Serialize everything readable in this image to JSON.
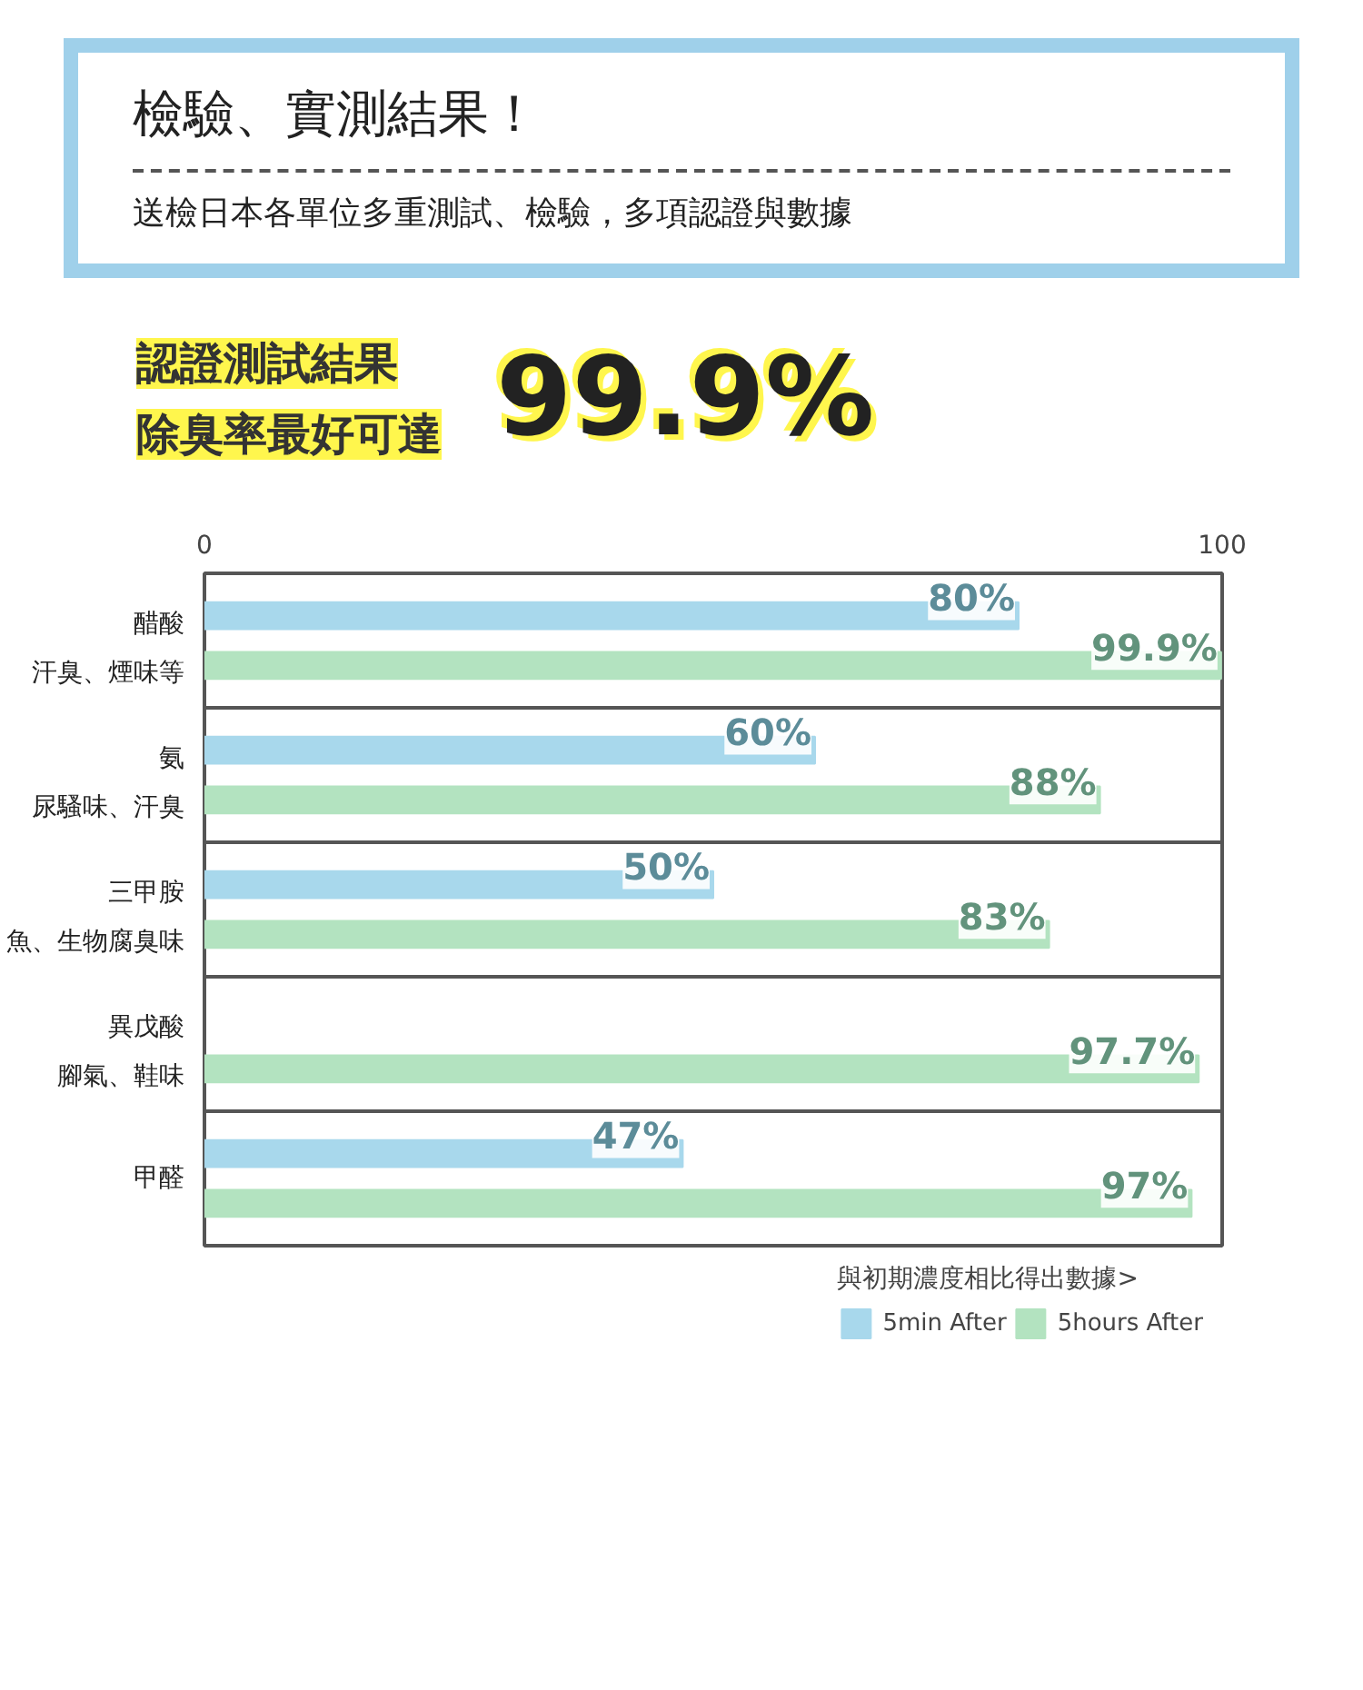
{
  "chart_data": {
    "type": "bar",
    "orientation": "horizontal",
    "title": "檢驗、實測結果！",
    "subtitle": "送檢日本各單位多重測試、檢驗，多項認證與數據",
    "annotations": [
      "認證測試結果",
      "除臭率最好可達",
      "99.9%",
      "汗臭、煙味等",
      "尿騷味、汗臭",
      "魚、生物腐臭味",
      "腳氣、鞋味"
    ],
    "categories": [
      "醋酸",
      "氨",
      "三甲胺",
      "異戊酸",
      "甲醛"
    ],
    "series": [
      {
        "name": "5min After",
        "color": "#a8d8ec",
        "values": [
          80,
          60,
          50,
          null,
          47
        ],
        "value_labels": [
          "80%",
          "60%",
          "50%",
          null,
          "47%"
        ]
      },
      {
        "name": "5hours After",
        "color": "#b3e3c0",
        "values": [
          99.9,
          88,
          83,
          97.7,
          97
        ],
        "value_labels": [
          "99.9%",
          "88%",
          "83%",
          "97.7%",
          "97%"
        ]
      }
    ],
    "xlim": [
      0,
      100
    ],
    "xticks": [
      0,
      100
    ],
    "grid": false,
    "legend": "bottom",
    "legend_title": "與初期濃度相比得出數據>"
  }
}
